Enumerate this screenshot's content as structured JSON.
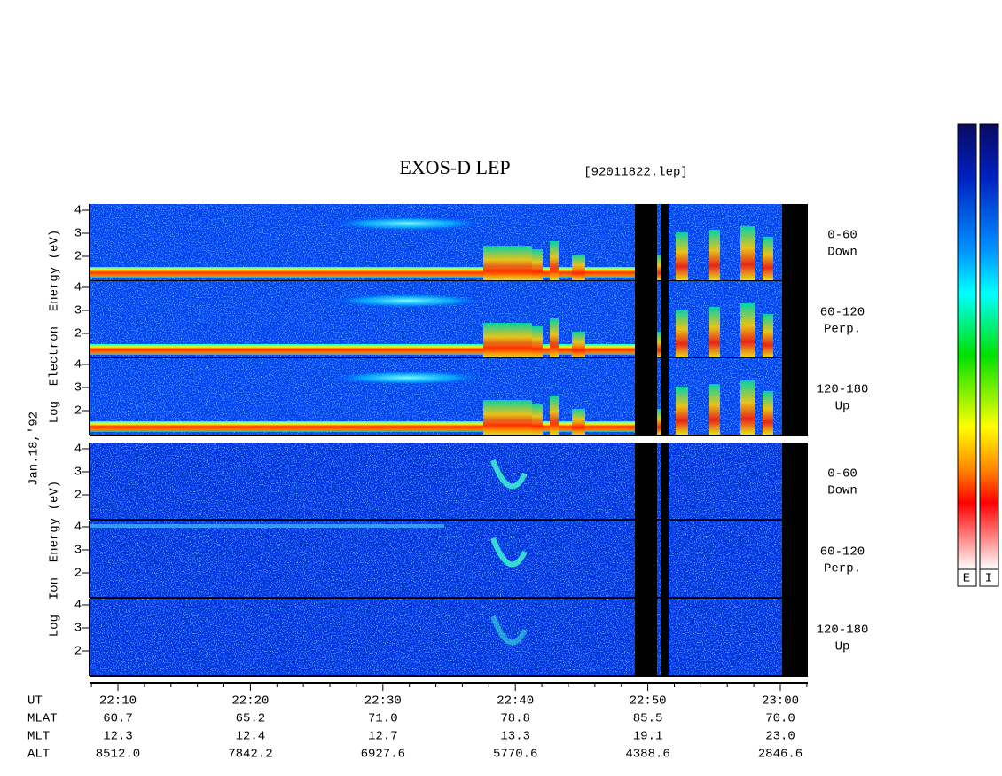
{
  "title": "EXOS-D LEP",
  "file": "[92011822.lep]",
  "date": "Jan.18,'92",
  "electron_axis": "Log  Electron  Energy (eV)",
  "ion_axis": "Log  Ion  Energy (eV)",
  "panel_ticks": [
    4,
    3,
    2
  ],
  "channels": [
    {
      "range": "0-60",
      "direction": "Down"
    },
    {
      "range": "60-120",
      "direction": "Perp."
    },
    {
      "range": "120-180",
      "direction": "Up"
    }
  ],
  "time_table": {
    "rows": [
      {
        "label": "UT",
        "values": [
          "22:10",
          "22:20",
          "22:30",
          "22:40",
          "22:50",
          "23:00"
        ]
      },
      {
        "label": "MLAT",
        "values": [
          "60.7",
          "65.2",
          "71.0",
          "78.8",
          "85.5",
          "70.0"
        ]
      },
      {
        "label": "MLT",
        "values": [
          "12.3",
          "12.4",
          "12.7",
          "13.3",
          "19.1",
          "23.0"
        ]
      },
      {
        "label": "ALT",
        "values": [
          "8512.0",
          "7842.2",
          "6927.6",
          "5770.6",
          "4388.6",
          "2846.6"
        ]
      }
    ]
  },
  "colorbar_labels": [
    "E",
    "I"
  ]
}
